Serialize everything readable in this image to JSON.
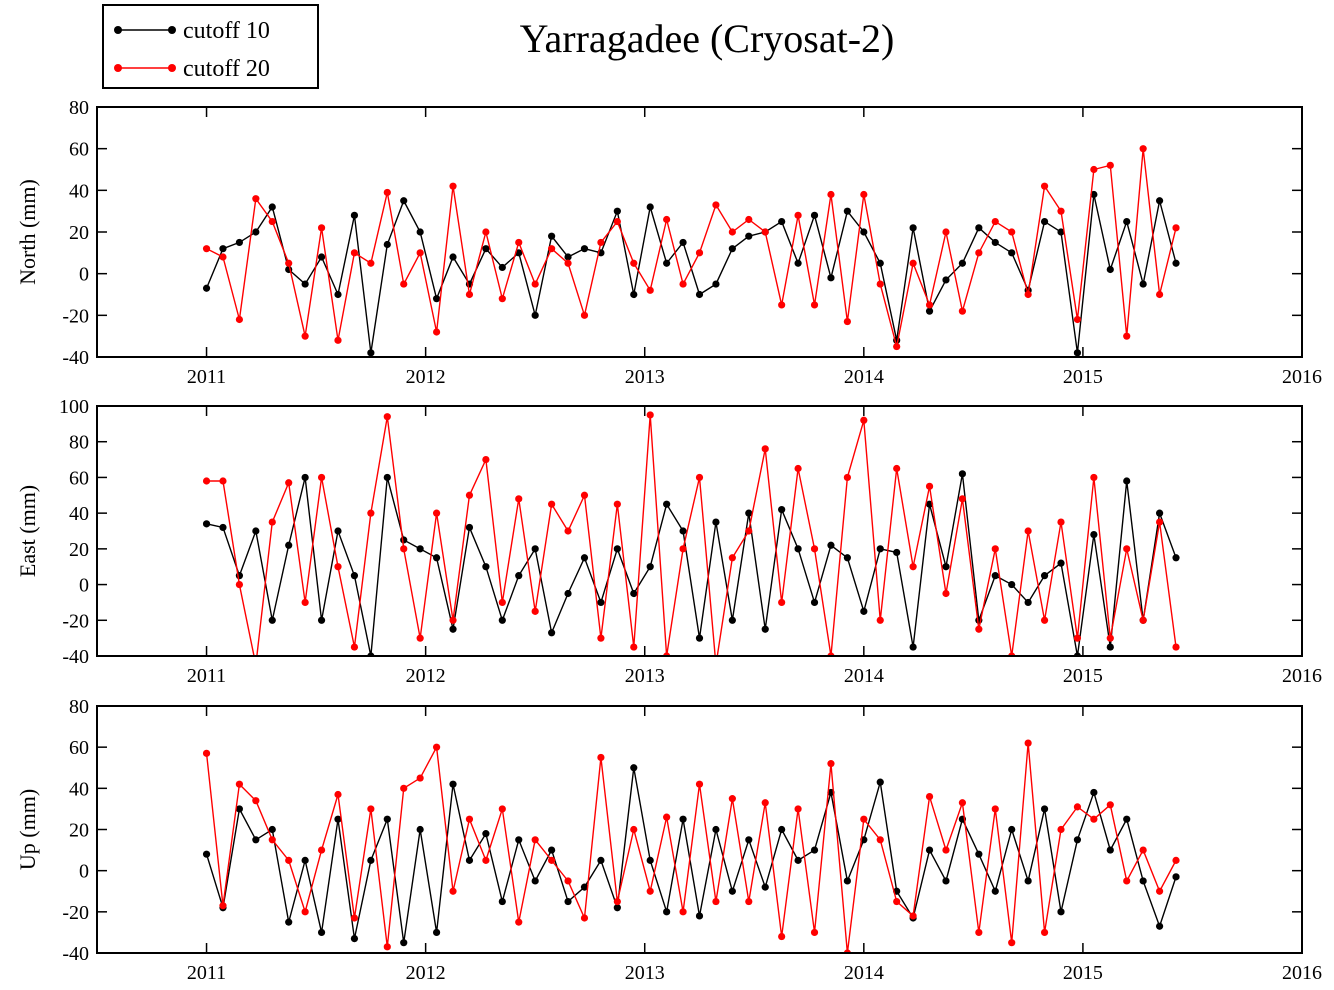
{
  "chart_data": [
    {
      "type": "line",
      "title": "Yarragadee (Cryosat-2)",
      "ylabel": "North (mm)",
      "x": [
        2011.0,
        2011.075,
        2011.15,
        2011.225,
        2011.3,
        2011.375,
        2011.45,
        2011.525,
        2011.6,
        2011.675,
        2011.75,
        2011.825,
        2011.9,
        2011.975,
        2012.05,
        2012.125,
        2012.2,
        2012.275,
        2012.35,
        2012.425,
        2012.5,
        2012.575,
        2012.65,
        2012.725,
        2012.8,
        2012.875,
        2012.95,
        2013.025,
        2013.1,
        2013.175,
        2013.25,
        2013.325,
        2013.4,
        2013.475,
        2013.55,
        2013.625,
        2013.7,
        2013.775,
        2013.85,
        2013.925,
        2014.0,
        2014.075,
        2014.15,
        2014.225,
        2014.3,
        2014.375,
        2014.45,
        2014.525,
        2014.6,
        2014.675,
        2014.75,
        2014.825,
        2014.9,
        2014.975,
        2015.05,
        2015.125,
        2015.2,
        2015.275,
        2015.35,
        2015.425
      ],
      "series": [
        {
          "name": "cutoff 10",
          "color": "#000000",
          "values": [
            -7,
            12,
            15,
            20,
            32,
            2,
            -5,
            8,
            -10,
            28,
            -38,
            14,
            35,
            20,
            -12,
            8,
            -5,
            12,
            3,
            10,
            -20,
            18,
            8,
            12,
            10,
            30,
            -10,
            32,
            5,
            15,
            -10,
            -5,
            12,
            18,
            20,
            25,
            5,
            28,
            -2,
            30,
            20,
            5,
            -32,
            22,
            -18,
            -3,
            5,
            22,
            15,
            10,
            -8,
            25,
            20,
            -38,
            38,
            2,
            25,
            -5,
            35,
            5
          ]
        },
        {
          "name": "cutoff 20",
          "color": "#ff0000",
          "values": [
            12,
            8,
            -22,
            36,
            25,
            5,
            -30,
            22,
            -32,
            10,
            5,
            39,
            -5,
            10,
            -28,
            42,
            -10,
            20,
            -12,
            15,
            -5,
            12,
            5,
            -20,
            15,
            25,
            5,
            -8,
            26,
            -5,
            10,
            33,
            20,
            26,
            20,
            -15,
            28,
            -15,
            38,
            -23,
            38,
            -5,
            -35,
            5,
            -15,
            20,
            -18,
            10,
            25,
            20,
            -10,
            42,
            30,
            -22,
            50,
            52,
            -30,
            60,
            -10,
            22
          ]
        }
      ],
      "xlim": [
        2010.5,
        2016
      ],
      "xticks": [
        2011,
        2012,
        2013,
        2014,
        2015,
        2016
      ],
      "ylim": [
        -40,
        80
      ],
      "yticks": [
        -40,
        -20,
        0,
        20,
        40,
        60,
        80
      ]
    },
    {
      "type": "line",
      "ylabel": "East (mm)",
      "x": [
        2011.0,
        2011.075,
        2011.15,
        2011.225,
        2011.3,
        2011.375,
        2011.45,
        2011.525,
        2011.6,
        2011.675,
        2011.75,
        2011.825,
        2011.9,
        2011.975,
        2012.05,
        2012.125,
        2012.2,
        2012.275,
        2012.35,
        2012.425,
        2012.5,
        2012.575,
        2012.65,
        2012.725,
        2012.8,
        2012.875,
        2012.95,
        2013.025,
        2013.1,
        2013.175,
        2013.25,
        2013.325,
        2013.4,
        2013.475,
        2013.55,
        2013.625,
        2013.7,
        2013.775,
        2013.85,
        2013.925,
        2014.0,
        2014.075,
        2014.15,
        2014.225,
        2014.3,
        2014.375,
        2014.45,
        2014.525,
        2014.6,
        2014.675,
        2014.75,
        2014.825,
        2014.9,
        2014.975,
        2015.05,
        2015.125,
        2015.2,
        2015.275,
        2015.35,
        2015.425
      ],
      "series": [
        {
          "color": "#000000",
          "values": [
            34,
            32,
            5,
            30,
            -20,
            22,
            60,
            -20,
            30,
            5,
            -40,
            60,
            25,
            20,
            15,
            -25,
            32,
            10,
            -20,
            5,
            20,
            -27,
            -5,
            15,
            -10,
            20,
            -5,
            10,
            45,
            30,
            -30,
            35,
            -20,
            40,
            -25,
            42,
            20,
            -10,
            22,
            15,
            -15,
            20,
            18,
            -35,
            45,
            10,
            62,
            -20,
            5,
            0,
            -10,
            5,
            12,
            -40,
            28,
            -35,
            58,
            -20,
            40,
            15
          ]
        },
        {
          "color": "#ff0000",
          "values": [
            58,
            58,
            0,
            -45,
            35,
            57,
            -10,
            60,
            10,
            -35,
            40,
            94,
            20,
            -30,
            40,
            -20,
            50,
            70,
            -10,
            48,
            -15,
            45,
            30,
            50,
            -30,
            45,
            -35,
            95,
            -40,
            20,
            60,
            -45,
            15,
            30,
            76,
            -10,
            65,
            20,
            -40,
            60,
            92,
            -20,
            65,
            10,
            55,
            -5,
            48,
            -25,
            20,
            -40,
            30,
            -20,
            35,
            -30,
            60,
            -30,
            20,
            -20,
            35,
            -35
          ]
        }
      ],
      "xlim": [
        2010.5,
        2016
      ],
      "xticks": [
        2011,
        2012,
        2013,
        2014,
        2015,
        2016
      ],
      "ylim": [
        -40,
        100
      ],
      "yticks": [
        -40,
        -20,
        0,
        20,
        40,
        60,
        80,
        100
      ]
    },
    {
      "type": "line",
      "ylabel": "Up (mm)",
      "x": [
        2011.0,
        2011.075,
        2011.15,
        2011.225,
        2011.3,
        2011.375,
        2011.45,
        2011.525,
        2011.6,
        2011.675,
        2011.75,
        2011.825,
        2011.9,
        2011.975,
        2012.05,
        2012.125,
        2012.2,
        2012.275,
        2012.35,
        2012.425,
        2012.5,
        2012.575,
        2012.65,
        2012.725,
        2012.8,
        2012.875,
        2012.95,
        2013.025,
        2013.1,
        2013.175,
        2013.25,
        2013.325,
        2013.4,
        2013.475,
        2013.55,
        2013.625,
        2013.7,
        2013.775,
        2013.85,
        2013.925,
        2014.0,
        2014.075,
        2014.15,
        2014.225,
        2014.3,
        2014.375,
        2014.45,
        2014.525,
        2014.6,
        2014.675,
        2014.75,
        2014.825,
        2014.9,
        2014.975,
        2015.05,
        2015.125,
        2015.2,
        2015.275,
        2015.35,
        2015.425
      ],
      "series": [
        {
          "color": "#000000",
          "values": [
            8,
            -18,
            30,
            15,
            20,
            -25,
            5,
            -30,
            25,
            -33,
            5,
            25,
            -35,
            20,
            -30,
            42,
            5,
            18,
            -15,
            15,
            -5,
            10,
            -15,
            -8,
            5,
            -18,
            50,
            5,
            -20,
            25,
            -22,
            20,
            -10,
            15,
            -8,
            20,
            5,
            10,
            38,
            -5,
            15,
            43,
            -10,
            -23,
            10,
            -5,
            25,
            8,
            -10,
            20,
            -5,
            30,
            -20,
            15,
            38,
            10,
            25,
            -5,
            -27,
            -3
          ]
        },
        {
          "color": "#ff0000",
          "values": [
            57,
            -17,
            42,
            34,
            15,
            5,
            -20,
            10,
            37,
            -23,
            30,
            -37,
            40,
            45,
            60,
            -10,
            25,
            5,
            30,
            -25,
            15,
            5,
            -5,
            -23,
            55,
            -15,
            20,
            -10,
            26,
            -20,
            42,
            -15,
            35,
            -15,
            33,
            -32,
            30,
            -30,
            52,
            -40,
            25,
            15,
            -15,
            -22,
            36,
            10,
            33,
            -30,
            30,
            -35,
            62,
            -30,
            20,
            31,
            25,
            32,
            -5,
            10,
            -10,
            5
          ]
        }
      ],
      "xlim": [
        2010.5,
        2016
      ],
      "xticks": [
        2011,
        2012,
        2013,
        2014,
        2015,
        2016
      ],
      "ylim": [
        -40,
        80
      ],
      "yticks": [
        -40,
        -20,
        0,
        20,
        40,
        60,
        80
      ]
    }
  ]
}
